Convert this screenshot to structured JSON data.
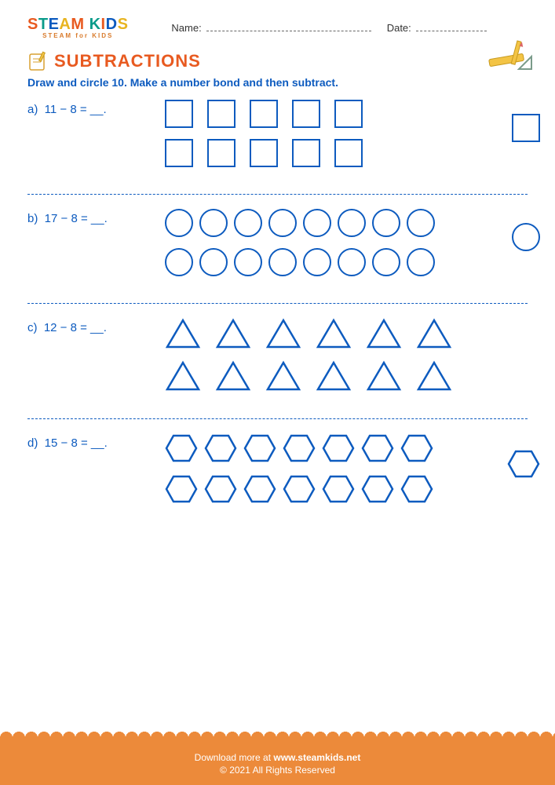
{
  "header": {
    "logo_letters": [
      "S",
      "T",
      "E",
      "A",
      "M",
      " ",
      "K",
      "I",
      "D",
      "S"
    ],
    "logo_colors": [
      "#e85a20",
      "#0a9b8a",
      "#0d5bbf",
      "#e8b420",
      "#e85a20",
      "#000",
      "#0a9b8a",
      "#e85a20",
      "#0d5bbf",
      "#e8b420"
    ],
    "logo_sub": "STEAM for KIDS",
    "name_label": "Name:",
    "date_label": "Date:"
  },
  "title": "SUBTRACTIONS",
  "instruction": "Draw and circle 10. Make a number bond and then subtract.",
  "shape_stroke": "#0d5bbf",
  "problems": [
    {
      "letter": "a)",
      "expr": "11 − 8 = __.",
      "shape": "square",
      "row1": 5,
      "row2": 5,
      "extra": 1,
      "gap_class": "mid"
    },
    {
      "letter": "b)",
      "expr": "17 − 8 = __.",
      "shape": "circle",
      "row1": 8,
      "row2": 8,
      "extra": 1,
      "gap_class": "tight"
    },
    {
      "letter": "c)",
      "expr": "12 − 8 = __.",
      "shape": "triangle",
      "row1": 6,
      "row2": 6,
      "extra": 0,
      "gap_class": "mid"
    },
    {
      "letter": "d)",
      "expr": "15 − 8 = __.",
      "shape": "hexagon",
      "row1": 7,
      "row2": 7,
      "extra": 1,
      "gap_class": "tight"
    }
  ],
  "footer": {
    "line1_prefix": "Download more at ",
    "line1_link": "www.steamkids.net",
    "line2": "© 2021 All Rights Reserved",
    "bg": "#ec8a3a"
  }
}
